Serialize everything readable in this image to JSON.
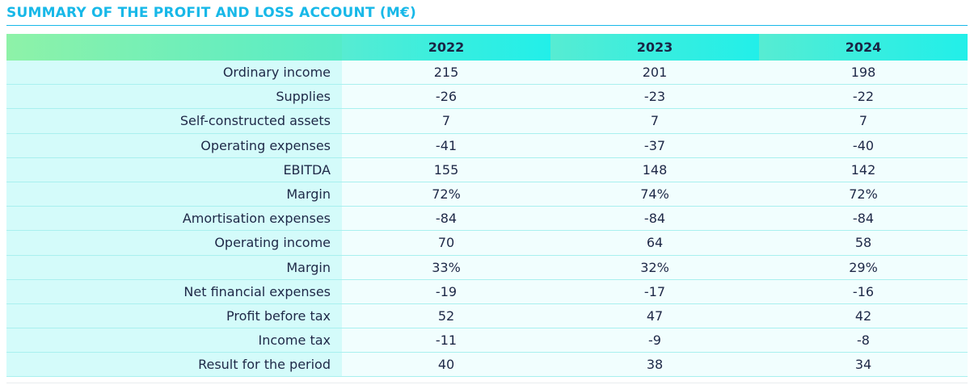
{
  "title": "SUMMARY OF THE PROFIT AND LOSS ACCOUNT (M€)",
  "columns": [
    "2022",
    "2023",
    "2024"
  ],
  "rows": [
    {
      "label": "Ordinary income",
      "values": [
        "215",
        "201",
        "198"
      ]
    },
    {
      "label": "Supplies",
      "values": [
        "-26",
        "-23",
        "-22"
      ]
    },
    {
      "label": "Self-constructed assets",
      "values": [
        "7",
        "7",
        "7"
      ]
    },
    {
      "label": "Operating expenses",
      "values": [
        "-41",
        "-37",
        "-40"
      ]
    },
    {
      "label": "EBITDA",
      "values": [
        "155",
        "148",
        "142"
      ]
    },
    {
      "label": "Margin",
      "values": [
        "72%",
        "74%",
        "72%"
      ]
    },
    {
      "label": "Amortisation expenses",
      "values": [
        "-84",
        "-84",
        "-84"
      ]
    },
    {
      "label": "Operating income",
      "values": [
        "70",
        "64",
        "58"
      ]
    },
    {
      "label": "Margin",
      "values": [
        "33%",
        "32%",
        "29%"
      ]
    },
    {
      "label": "Net financial expenses",
      "values": [
        "-19",
        "-17",
        "-16"
      ]
    },
    {
      "label": "Profit before tax",
      "values": [
        "52",
        "47",
        "42"
      ]
    },
    {
      "label": "Income tax",
      "values": [
        "-11",
        "-9",
        "-8"
      ]
    },
    {
      "label": "Result for the period",
      "values": [
        "40",
        "38",
        "34"
      ]
    }
  ],
  "colors": {
    "title": "#18b8e8",
    "header_gradient_start": "#8ef2a8",
    "header_gradient_end": "#22efe9",
    "label_cell_bg": "#d4fbfa",
    "value_cell_bg": "#f1fefe",
    "row_divider": "#a9f0ef"
  }
}
